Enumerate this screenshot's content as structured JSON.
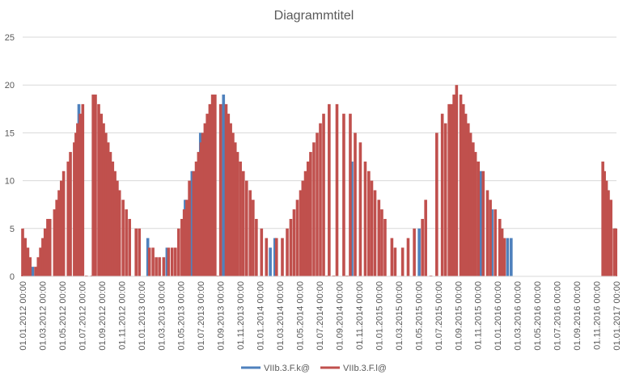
{
  "chart_data": {
    "type": "bar",
    "title": "Diagrammtitel",
    "ylim": [
      0,
      25
    ],
    "yticks": [
      0,
      5,
      10,
      15,
      20,
      25
    ],
    "xlim": [
      "2012-01-01",
      "2017-01-01"
    ],
    "xtick_labels": [
      "01.01.2012 00:00",
      "01.03.2012 00:00",
      "01.05.2012 00:00",
      "01.07.2012 00:00",
      "01.09.2012 00:00",
      "01.11.2012 00:00",
      "01.01.2013 00:00",
      "01.03.2013 00:00",
      "01.05.2013 00:00",
      "01.07.2013 00:00",
      "01.09.2013 00:00",
      "01.11.2013 00:00",
      "01.01.2014 00:00",
      "01.03.2014 00:00",
      "01.05.2014 00:00",
      "01.07.2014 00:00",
      "01.09.2014 00:00",
      "01.11.2014 00:00",
      "01.01.2015 00:00",
      "01.03.2015 00:00",
      "01.05.2015 00:00",
      "01.07.2015 00:00",
      "01.09.2015 00:00",
      "01.11.2015 00:00",
      "01.01.2016 00:00",
      "01.03.2016 00:00",
      "01.05.2016 00:00",
      "01.07.2016 00:00",
      "01.09.2016 00:00",
      "01.11.2016 00:00",
      "01.01.2017 00:00"
    ],
    "grid": true,
    "legend_position": "bottom",
    "series": [
      {
        "name": "VIIb.3.F.k@",
        "color": "#4f81bd",
        "points": [
          [
            "2012-01-05",
            4
          ],
          [
            "2012-01-12",
            3
          ],
          [
            "2012-02-01",
            1
          ],
          [
            "2012-06-22",
            18
          ],
          [
            "2013-01-20",
            4
          ],
          [
            "2013-03-20",
            3
          ],
          [
            "2013-05-15",
            8
          ],
          [
            "2013-06-05",
            11
          ],
          [
            "2013-07-01",
            15
          ],
          [
            "2013-09-10",
            19
          ],
          [
            "2014-02-01",
            3
          ],
          [
            "2014-02-15",
            4
          ],
          [
            "2014-10-10",
            12
          ],
          [
            "2015-05-05",
            5
          ],
          [
            "2015-11-10",
            11
          ],
          [
            "2015-12-15",
            7
          ],
          [
            "2016-02-01",
            4
          ],
          [
            "2016-02-12",
            4
          ],
          [
            "2016-12-28",
            5
          ]
        ]
      },
      {
        "name": "VIIb.3.F.l@",
        "color": "#c0504d",
        "points": [
          [
            "2012-01-01",
            5
          ],
          [
            "2012-01-09",
            4
          ],
          [
            "2012-01-17",
            3
          ],
          [
            "2012-01-24",
            2
          ],
          [
            "2012-02-10",
            1
          ],
          [
            "2012-02-18",
            2
          ],
          [
            "2012-02-25",
            3
          ],
          [
            "2012-03-03",
            4
          ],
          [
            "2012-03-10",
            5
          ],
          [
            "2012-03-18",
            6
          ],
          [
            "2012-03-25",
            6
          ],
          [
            "2012-04-08",
            7
          ],
          [
            "2012-04-15",
            8
          ],
          [
            "2012-04-22",
            9
          ],
          [
            "2012-04-29",
            10
          ],
          [
            "2012-05-06",
            11
          ],
          [
            "2012-05-20",
            12
          ],
          [
            "2012-05-27",
            13
          ],
          [
            "2012-06-08",
            14
          ],
          [
            "2012-06-13",
            15
          ],
          [
            "2012-06-18",
            16
          ],
          [
            "2012-06-26",
            17
          ],
          [
            "2012-07-04",
            18
          ],
          [
            "2012-07-15",
            0
          ],
          [
            "2012-08-01",
            0
          ],
          [
            "2012-08-05",
            19
          ],
          [
            "2012-08-12",
            19
          ],
          [
            "2012-08-22",
            18
          ],
          [
            "2012-08-30",
            17
          ],
          [
            "2012-09-06",
            16
          ],
          [
            "2012-09-13",
            15
          ],
          [
            "2012-09-20",
            14
          ],
          [
            "2012-09-27",
            13
          ],
          [
            "2012-10-04",
            12
          ],
          [
            "2012-10-11",
            11
          ],
          [
            "2012-10-18",
            10
          ],
          [
            "2012-10-25",
            9
          ],
          [
            "2012-11-05",
            8
          ],
          [
            "2012-11-15",
            7
          ],
          [
            "2012-11-25",
            6
          ],
          [
            "2012-12-15",
            5
          ],
          [
            "2012-12-25",
            5
          ],
          [
            "2013-01-25",
            3
          ],
          [
            "2013-02-05",
            3
          ],
          [
            "2013-02-15",
            2
          ],
          [
            "2013-02-25",
            2
          ],
          [
            "2013-03-10",
            2
          ],
          [
            "2013-03-25",
            3
          ],
          [
            "2013-04-05",
            3
          ],
          [
            "2013-04-15",
            3
          ],
          [
            "2013-04-25",
            5
          ],
          [
            "2013-05-05",
            6
          ],
          [
            "2013-05-12",
            7
          ],
          [
            "2013-05-20",
            8
          ],
          [
            "2013-05-28",
            10
          ],
          [
            "2013-06-10",
            11
          ],
          [
            "2013-06-18",
            12
          ],
          [
            "2013-06-25",
            13
          ],
          [
            "2013-07-03",
            14
          ],
          [
            "2013-07-08",
            15
          ],
          [
            "2013-07-15",
            16
          ],
          [
            "2013-07-22",
            17
          ],
          [
            "2013-07-30",
            18
          ],
          [
            "2013-08-07",
            19
          ],
          [
            "2013-08-15",
            19
          ],
          [
            "2013-08-22",
            0
          ],
          [
            "2013-09-01",
            18
          ],
          [
            "2013-09-18",
            18
          ],
          [
            "2013-09-25",
            17
          ],
          [
            "2013-10-02",
            16
          ],
          [
            "2013-10-09",
            15
          ],
          [
            "2013-10-16",
            14
          ],
          [
            "2013-10-23",
            13
          ],
          [
            "2013-11-01",
            12
          ],
          [
            "2013-11-10",
            11
          ],
          [
            "2013-11-20",
            10
          ],
          [
            "2013-12-01",
            9
          ],
          [
            "2013-12-10",
            8
          ],
          [
            "2013-12-20",
            6
          ],
          [
            "2014-01-05",
            5
          ],
          [
            "2014-01-20",
            4
          ],
          [
            "2014-02-20",
            4
          ],
          [
            "2014-03-10",
            4
          ],
          [
            "2014-03-25",
            5
          ],
          [
            "2014-04-05",
            6
          ],
          [
            "2014-04-15",
            7
          ],
          [
            "2014-04-25",
            8
          ],
          [
            "2014-05-05",
            9
          ],
          [
            "2014-05-12",
            10
          ],
          [
            "2014-05-20",
            11
          ],
          [
            "2014-05-28",
            12
          ],
          [
            "2014-06-05",
            13
          ],
          [
            "2014-06-15",
            14
          ],
          [
            "2014-06-25",
            15
          ],
          [
            "2014-07-05",
            16
          ],
          [
            "2014-07-15",
            17
          ],
          [
            "2014-07-25",
            0
          ],
          [
            "2014-08-01",
            18
          ],
          [
            "2014-08-15",
            0
          ],
          [
            "2014-08-25",
            18
          ],
          [
            "2014-09-15",
            17
          ],
          [
            "2014-09-25",
            0
          ],
          [
            "2014-10-05",
            17
          ],
          [
            "2014-10-20",
            15
          ],
          [
            "2014-11-05",
            14
          ],
          [
            "2014-11-20",
            12
          ],
          [
            "2014-12-01",
            11
          ],
          [
            "2014-12-10",
            10
          ],
          [
            "2014-12-20",
            9
          ],
          [
            "2015-01-01",
            8
          ],
          [
            "2015-01-10",
            7
          ],
          [
            "2015-01-20",
            6
          ],
          [
            "2015-02-10",
            4
          ],
          [
            "2015-02-20",
            3
          ],
          [
            "2015-03-15",
            3
          ],
          [
            "2015-04-01",
            4
          ],
          [
            "2015-04-20",
            5
          ],
          [
            "2015-05-15",
            6
          ],
          [
            "2015-05-25",
            8
          ],
          [
            "2015-06-10",
            0
          ],
          [
            "2015-06-28",
            15
          ],
          [
            "2015-07-15",
            17
          ],
          [
            "2015-07-25",
            16
          ],
          [
            "2015-08-05",
            18
          ],
          [
            "2015-08-12",
            18
          ],
          [
            "2015-08-20",
            19
          ],
          [
            "2015-08-28",
            20
          ],
          [
            "2015-09-10",
            19
          ],
          [
            "2015-09-18",
            18
          ],
          [
            "2015-09-25",
            17
          ],
          [
            "2015-10-03",
            16
          ],
          [
            "2015-10-10",
            15
          ],
          [
            "2015-10-18",
            14
          ],
          [
            "2015-10-25",
            13
          ],
          [
            "2015-11-03",
            12
          ],
          [
            "2015-11-18",
            11
          ],
          [
            "2015-12-01",
            9
          ],
          [
            "2015-12-10",
            8
          ],
          [
            "2015-12-25",
            7
          ],
          [
            "2016-01-08",
            6
          ],
          [
            "2016-01-15",
            5
          ],
          [
            "2016-01-22",
            4
          ],
          [
            "2016-11-20",
            12
          ],
          [
            "2016-11-25",
            11
          ],
          [
            "2016-12-01",
            10
          ],
          [
            "2016-12-07",
            9
          ],
          [
            "2016-12-15",
            8
          ],
          [
            "2016-12-25",
            5
          ],
          [
            "2016-12-30",
            5
          ]
        ]
      }
    ]
  }
}
